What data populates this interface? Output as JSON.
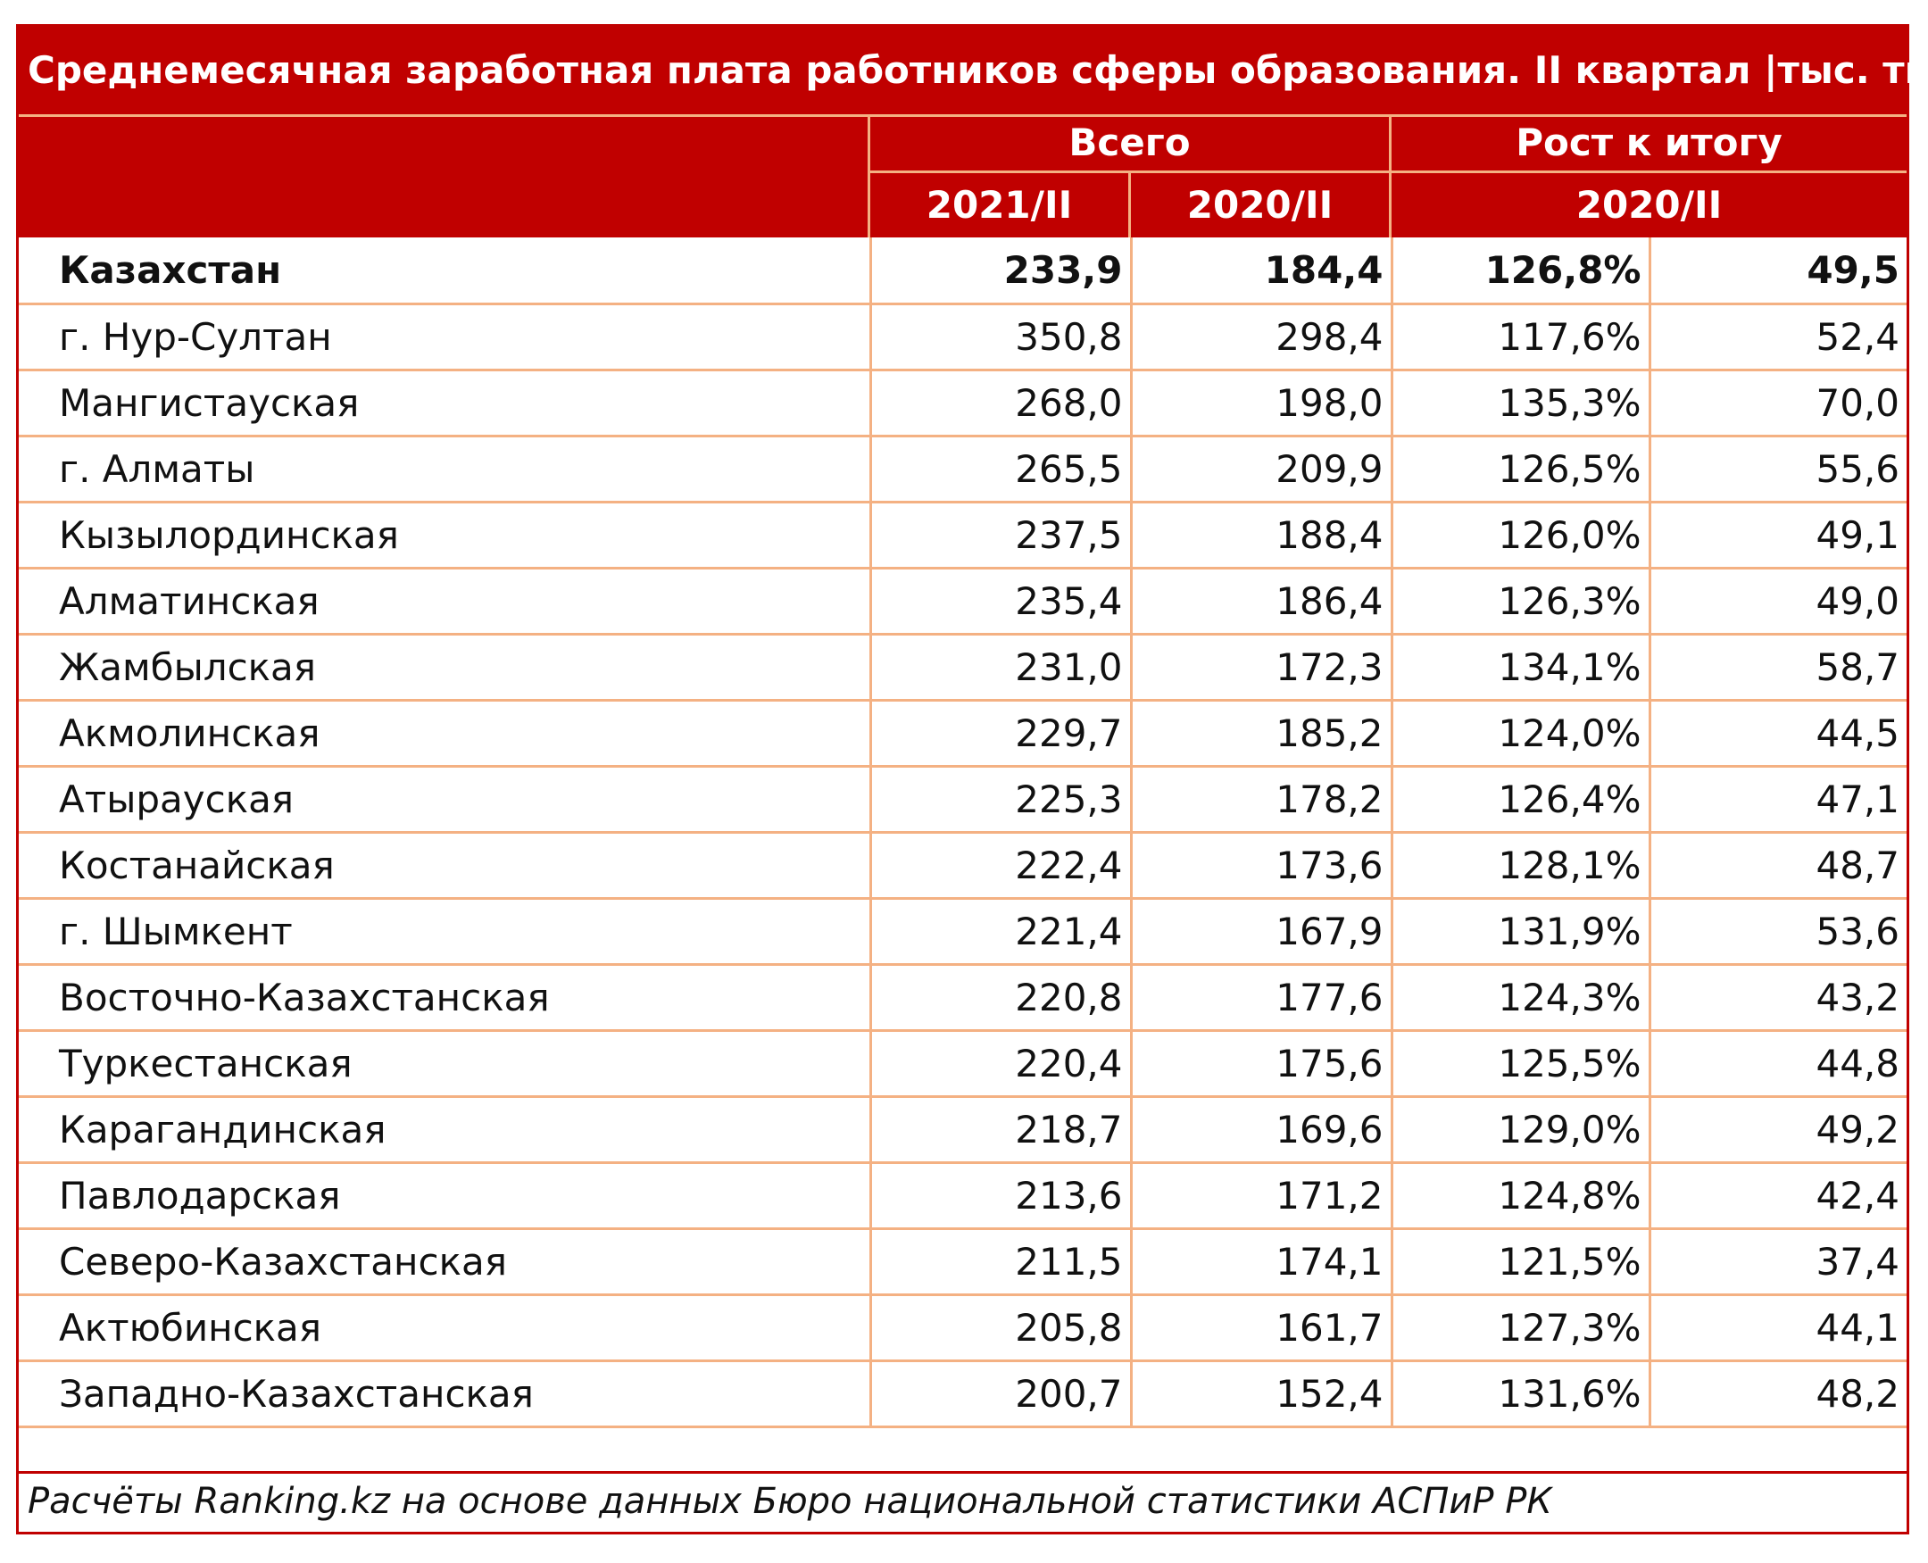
{
  "chart_data": {
    "type": "table",
    "title": "Среднемесячная заработная плата работников сферы образования. II квартал |тыс. тг",
    "header": {
      "group_total": "Всего",
      "group_growth": "Рост к итогу",
      "col_2021": "2021/II",
      "col_2020": "2020/II",
      "col_growth": "2020/II"
    },
    "rows": [
      {
        "region": "Казахстан",
        "v2021": "233,9",
        "v2020": "184,4",
        "growth_pct": "126,8%",
        "growth_abs": "49,5"
      },
      {
        "region": "г. Нур-Султан",
        "v2021": "350,8",
        "v2020": "298,4",
        "growth_pct": "117,6%",
        "growth_abs": "52,4"
      },
      {
        "region": "Мангистауская",
        "v2021": "268,0",
        "v2020": "198,0",
        "growth_pct": "135,3%",
        "growth_abs": "70,0"
      },
      {
        "region": "г. Алматы",
        "v2021": "265,5",
        "v2020": "209,9",
        "growth_pct": "126,5%",
        "growth_abs": "55,6"
      },
      {
        "region": "Кызылординская",
        "v2021": "237,5",
        "v2020": "188,4",
        "growth_pct": "126,0%",
        "growth_abs": "49,1"
      },
      {
        "region": "Алматинская",
        "v2021": "235,4",
        "v2020": "186,4",
        "growth_pct": "126,3%",
        "growth_abs": "49,0"
      },
      {
        "region": "Жамбылская",
        "v2021": "231,0",
        "v2020": "172,3",
        "growth_pct": "134,1%",
        "growth_abs": "58,7"
      },
      {
        "region": "Акмолинская",
        "v2021": "229,7",
        "v2020": "185,2",
        "growth_pct": "124,0%",
        "growth_abs": "44,5"
      },
      {
        "region": "Атырауская",
        "v2021": "225,3",
        "v2020": "178,2",
        "growth_pct": "126,4%",
        "growth_abs": "47,1"
      },
      {
        "region": "Костанайская",
        "v2021": "222,4",
        "v2020": "173,6",
        "growth_pct": "128,1%",
        "growth_abs": "48,7"
      },
      {
        "region": "г. Шымкент",
        "v2021": "221,4",
        "v2020": "167,9",
        "growth_pct": "131,9%",
        "growth_abs": "53,6"
      },
      {
        "region": "Восточно-Казахстанская",
        "v2021": "220,8",
        "v2020": "177,6",
        "growth_pct": "124,3%",
        "growth_abs": "43,2"
      },
      {
        "region": "Туркестанская",
        "v2021": "220,4",
        "v2020": "175,6",
        "growth_pct": "125,5%",
        "growth_abs": "44,8"
      },
      {
        "region": "Карагандинская",
        "v2021": "218,7",
        "v2020": "169,6",
        "growth_pct": "129,0%",
        "growth_abs": "49,2"
      },
      {
        "region": "Павлодарская",
        "v2021": "213,6",
        "v2020": "171,2",
        "growth_pct": "124,8%",
        "growth_abs": "42,4"
      },
      {
        "region": "Северо-Казахстанская",
        "v2021": "211,5",
        "v2020": "174,1",
        "growth_pct": "121,5%",
        "growth_abs": "37,4"
      },
      {
        "region": "Актюбинская",
        "v2021": "205,8",
        "v2020": "161,7",
        "growth_pct": "127,3%",
        "growth_abs": "44,1"
      },
      {
        "region": "Западно-Казахстанская",
        "v2021": "200,7",
        "v2020": "152,4",
        "growth_pct": "131,6%",
        "growth_abs": "48,2"
      }
    ],
    "source": "Расчёты Ranking.kz на основе данных Бюро национальной статистики АСПиР РК"
  },
  "colors": {
    "header_bg": "#c00000",
    "header_text": "#ffffff",
    "grid_line": "#f4b183",
    "border": "#c00000"
  }
}
